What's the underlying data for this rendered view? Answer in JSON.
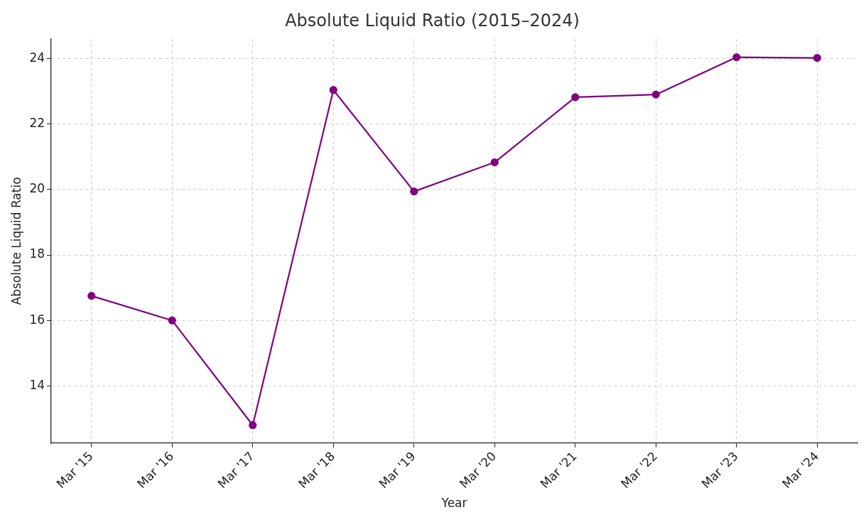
{
  "chart_data": {
    "type": "line",
    "title": "Absolute Liquid Ratio (2015–2024)",
    "xlabel": "Year",
    "ylabel": "Absolute Liquid Ratio",
    "categories": [
      "Mar '15",
      "Mar '16",
      "Mar '17",
      "Mar '18",
      "Mar '19",
      "Mar '20",
      "Mar '21",
      "Mar '22",
      "Mar '23",
      "Mar '24"
    ],
    "series": [
      {
        "color": "#800080",
        "values": [
          16.75,
          16.0,
          12.8,
          23.04,
          19.94,
          20.83,
          22.82,
          22.9,
          24.04,
          24.02
        ]
      }
    ],
    "ylim": [
      12.25,
      24.6
    ],
    "yticks": [
      14,
      16,
      18,
      20,
      22,
      24
    ],
    "grid": true,
    "marker": "circle",
    "line_style": "solid",
    "legend": false
  }
}
